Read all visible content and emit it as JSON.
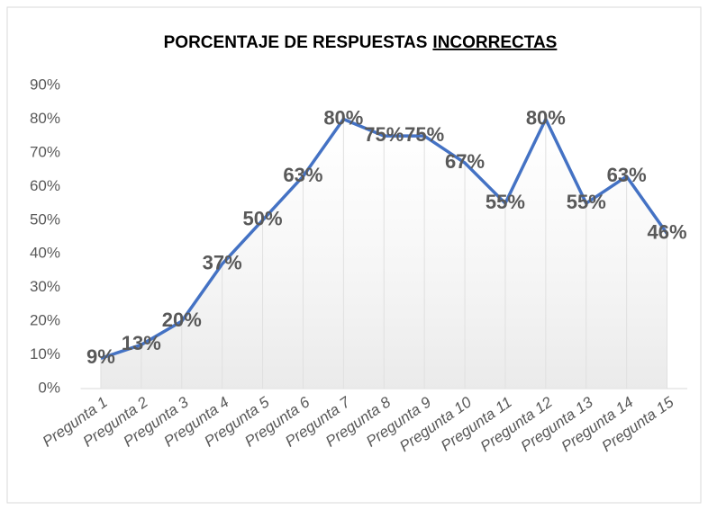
{
  "chart_data": {
    "type": "line",
    "title": [
      "PORCENTAJE DE RESPUESTAS",
      "INCORRECTAS"
    ],
    "categories": [
      "Pregunta 1",
      "Pregunta 2",
      "Pregunta 3",
      "Pregunta 4",
      "Pregunta 5",
      "Pregunta 6",
      "Pregunta 7",
      "Pregunta 8",
      "Pregunta 9",
      "Pregunta 10",
      "Pregunta 11",
      "Pregunta 12",
      "Pregunta 13",
      "Pregunta 14",
      "Pregunta 15"
    ],
    "values": [
      9,
      13,
      20,
      37,
      50,
      63,
      80,
      75,
      75,
      67,
      55,
      80,
      55,
      63,
      46
    ],
    "value_labels": [
      "9%",
      "13%",
      "20%",
      "37%",
      "50%",
      "63%",
      "80%",
      "75%",
      "75%",
      "67%",
      "55%",
      "80%",
      "55%",
      "63%",
      "46%"
    ],
    "color": "#4472c4",
    "ylim": [
      0,
      90
    ],
    "yticks": [
      {
        "value": 0,
        "label": "0%"
      },
      {
        "value": 10,
        "label": "10%"
      },
      {
        "value": 20,
        "label": "20%"
      },
      {
        "value": 30,
        "label": "30%"
      },
      {
        "value": 40,
        "label": "40%"
      },
      {
        "value": 50,
        "label": "50%"
      },
      {
        "value": 60,
        "label": "60%"
      },
      {
        "value": 70,
        "label": "70%"
      },
      {
        "value": 80,
        "label": "80%"
      },
      {
        "value": 90,
        "label": "90%"
      }
    ]
  }
}
